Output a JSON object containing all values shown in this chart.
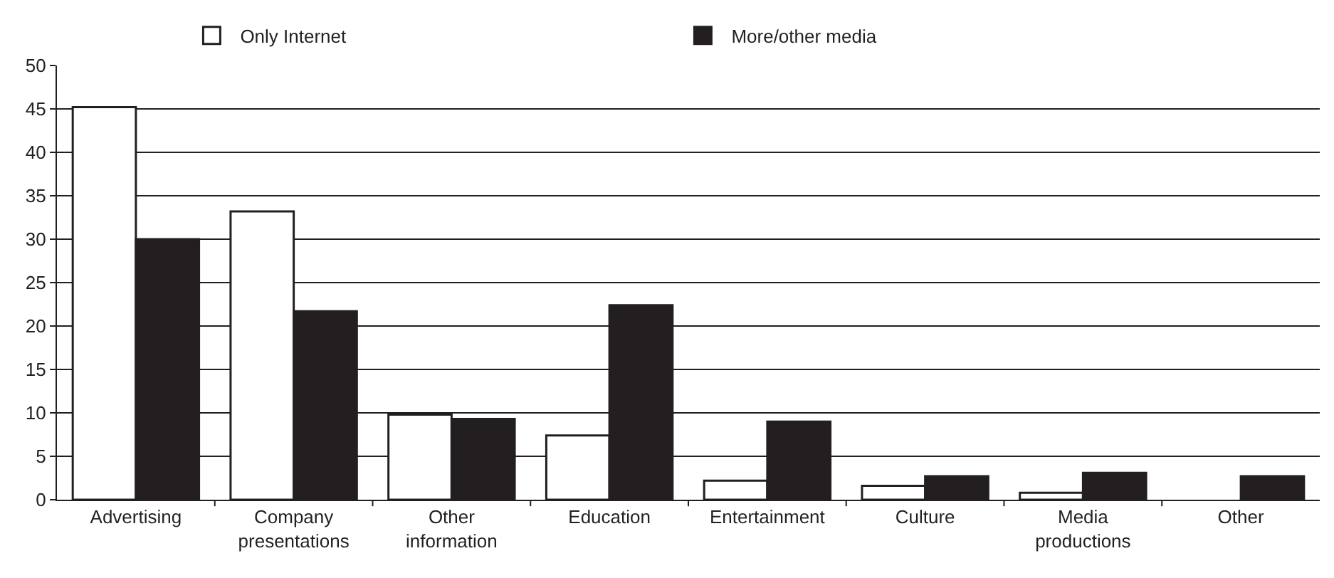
{
  "chart_data": {
    "type": "bar",
    "categories": [
      "Advertising",
      "Company presentations",
      "Other information",
      "Education",
      "Entertainment",
      "Culture",
      "Media productions",
      "Other"
    ],
    "series": [
      {
        "name": "Only Internet",
        "color": "#ffffff",
        "values": [
          45.2,
          33.2,
          9.8,
          7.4,
          2.2,
          1.6,
          0.8,
          null
        ]
      },
      {
        "name": "More/other media",
        "color": "#231f20",
        "values": [
          30.0,
          21.7,
          9.3,
          22.4,
          9.0,
          2.7,
          3.1,
          2.7
        ]
      }
    ],
    "ylim": [
      0,
      50
    ],
    "yticks": [
      0,
      5,
      10,
      15,
      20,
      25,
      30,
      35,
      40,
      45,
      50
    ],
    "grid": "y",
    "legend": "top"
  }
}
